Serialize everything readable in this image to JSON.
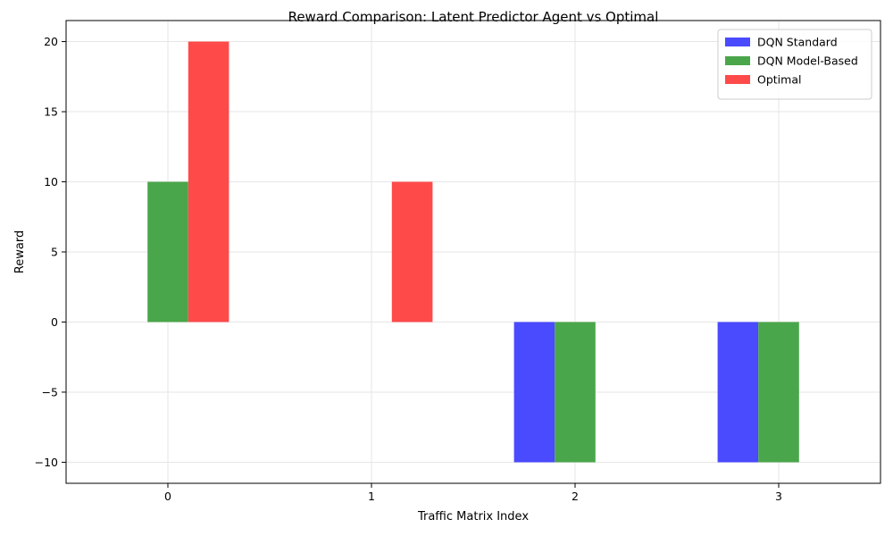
{
  "chart_data": {
    "type": "bar",
    "title": "Reward Comparison: Latent Predictor Agent vs Optimal",
    "xlabel": "Traffic Matrix Index",
    "ylabel": "Reward",
    "categories": [
      "0",
      "1",
      "2",
      "3"
    ],
    "series": [
      {
        "name": "DQN Standard",
        "values": [
          0,
          0,
          -10,
          -10
        ],
        "color": "#4a4aff"
      },
      {
        "name": "DQN Model-Based",
        "values": [
          10,
          0,
          -10,
          -10
        ],
        "color": "#4aa64a"
      },
      {
        "name": "Optimal",
        "values": [
          20,
          10,
          0,
          0
        ],
        "color": "#ff4a4a"
      }
    ],
    "ylim": [
      -11.5,
      21.5
    ],
    "yticks": [
      -10,
      -5,
      0,
      5,
      10,
      15,
      20
    ],
    "yticklabels": [
      "−10",
      "−5",
      "0",
      "5",
      "10",
      "15",
      "20"
    ],
    "grid": true,
    "legend_position": "top-right"
  }
}
